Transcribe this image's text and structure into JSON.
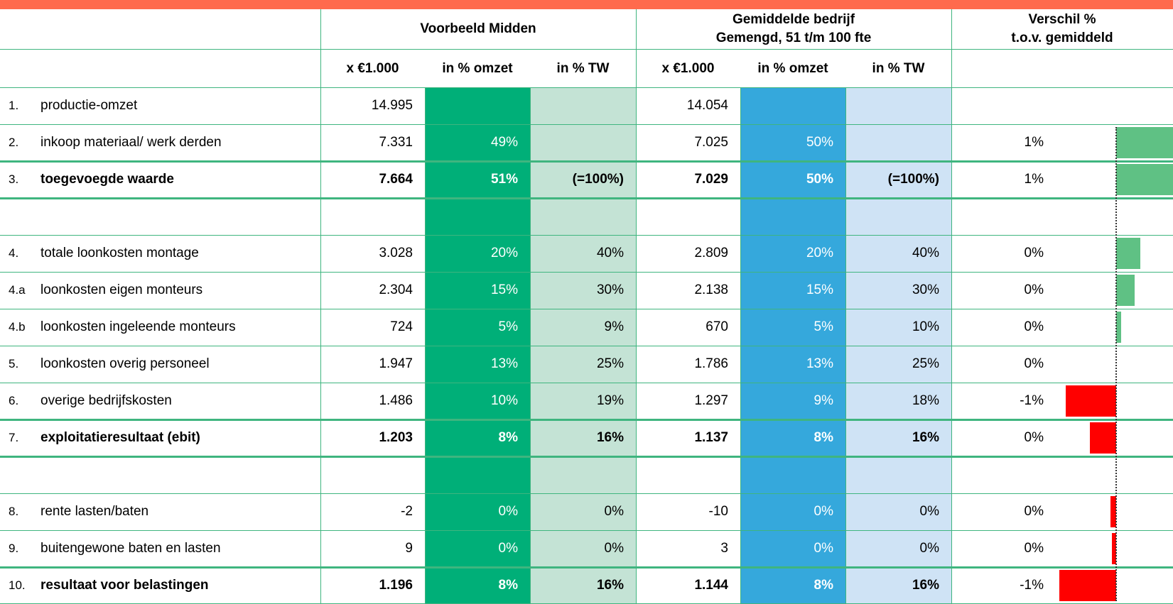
{
  "header": {
    "group1": "Voorbeeld Midden",
    "group2": [
      "Gemiddelde bedrijf",
      "Gemengd, 51 t/m 100 fte"
    ],
    "group3": [
      "Verschil %",
      "t.o.v. gemiddeld"
    ],
    "columns": [
      "x €1.000",
      "in % omzet",
      "in % TW",
      "x €1.000",
      "in % omzet",
      "in % TW"
    ]
  },
  "rows": [
    {
      "num": "1.",
      "label": "productie-omzet",
      "cells": [
        "14.995",
        null,
        null,
        "14.054",
        null,
        null
      ],
      "verschil": null,
      "bar": null
    },
    {
      "num": "2.",
      "label": "inkoop materiaal/ werk derden",
      "cells": [
        "7.331",
        "49%",
        null,
        "7.025",
        "50%",
        null
      ],
      "verschil": "1%",
      "bar": 1.1
    },
    {
      "num": "3.",
      "label": "toegevoegde waarde",
      "bold": true,
      "cells": [
        "7.664",
        "51%",
        "(=100%)",
        "7.029",
        "50%",
        "(=100%)"
      ],
      "verschil": "1%",
      "bar": 1.1
    },
    null,
    {
      "num": "4.",
      "label": "totale loonkosten montage",
      "cells": [
        "3.028",
        "20%",
        "40%",
        "2.809",
        "20%",
        "40%"
      ],
      "verschil": "0%",
      "bar": 0.32
    },
    {
      "num": "4.a",
      "label": "loonkosten eigen monteurs",
      "cells": [
        "2.304",
        "15%",
        "30%",
        "2.138",
        "15%",
        "30%"
      ],
      "verschil": "0%",
      "bar": 0.25
    },
    {
      "num": "4.b",
      "label": "loonkosten ingeleende monteurs",
      "cells": [
        "724",
        "5%",
        "9%",
        "670",
        "5%",
        "10%"
      ],
      "verschil": "0%",
      "bar": 0.07
    },
    {
      "num": "5.",
      "label": "loonkosten overig personeel",
      "cells": [
        "1.947",
        "13%",
        "25%",
        "1.786",
        "13%",
        "25%"
      ],
      "verschil": "0%",
      "bar": 0
    },
    {
      "num": "6.",
      "label": "overige bedrijfskosten",
      "cells": [
        "1.486",
        "10%",
        "19%",
        "1.297",
        "9%",
        "18%"
      ],
      "verschil": "-1%",
      "bar": -0.68
    },
    {
      "num": "7.",
      "label": "exploitatieresultaat (ebit)",
      "bold": true,
      "cells": [
        "1.203",
        "8%",
        "16%",
        "1.137",
        "8%",
        "16%"
      ],
      "verschil": "0%",
      "bar": -0.35
    },
    null,
    {
      "num": "8.",
      "label": "rente lasten/baten",
      "cells": [
        "-2",
        "0%",
        "0%",
        "-10",
        "0%",
        "0%"
      ],
      "verschil": "0%",
      "bar": -0.08
    },
    {
      "num": "9.",
      "label": "buitengewone baten en lasten",
      "cells": [
        "9",
        "0%",
        "0%",
        "3",
        "0%",
        "0%"
      ],
      "verschil": "0%",
      "bar": -0.06
    },
    {
      "num": "10.",
      "label": "resultaat voor belastingen",
      "bold": true,
      "cells": [
        "1.196",
        "8%",
        "16%",
        "1.144",
        "8%",
        "16%"
      ],
      "verschil": "-1%",
      "bar": -0.76
    }
  ]
}
